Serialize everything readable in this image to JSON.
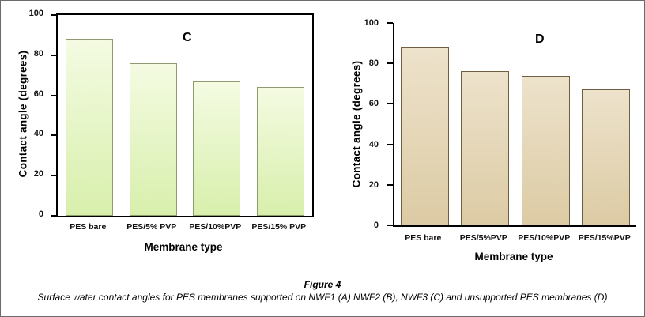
{
  "figure": {
    "caption_title": "Figure 4",
    "caption_text": "Surface water contact angles for PES membranes supported on NWF1 (A) NWF2 (B), NWF3 (C) and unsupported PES membranes (D)"
  },
  "chart_data": [
    {
      "type": "bar",
      "panel_label": "C",
      "categories": [
        "PES bare",
        "PES/5% PVP",
        "PES/10%PVP",
        "PES/15% PVP"
      ],
      "values": [
        88,
        76,
        67,
        64
      ],
      "xlabel": "Membrane type",
      "ylabel": "Contact angle (degrees)",
      "ylim": [
        0,
        100
      ],
      "yticks": [
        0,
        20,
        40,
        60,
        80,
        100
      ],
      "grid": false,
      "legend": "none",
      "frame": "box",
      "bar_width_frac": 0.75,
      "bar_fill_top": "#f4fbe2",
      "bar_fill_bottom": "#d8efac",
      "bar_border": "#8f9c70"
    },
    {
      "type": "bar",
      "panel_label": "D",
      "categories": [
        "PES bare",
        "PES/5%PVP",
        "PES/10%PVP",
        "PES/15%PVP"
      ],
      "values": [
        88,
        76,
        74,
        67
      ],
      "xlabel": "Membrane type",
      "ylabel": "Contact angle (degrees)",
      "ylim": [
        0,
        100
      ],
      "yticks": [
        0,
        20,
        40,
        60,
        80,
        100
      ],
      "grid": false,
      "legend": "none",
      "frame": "axes",
      "bar_width_frac": 0.8,
      "bar_fill_top": "#ede2cb",
      "bar_fill_bottom": "#dccba4",
      "bar_border": "#6f5f40"
    }
  ]
}
